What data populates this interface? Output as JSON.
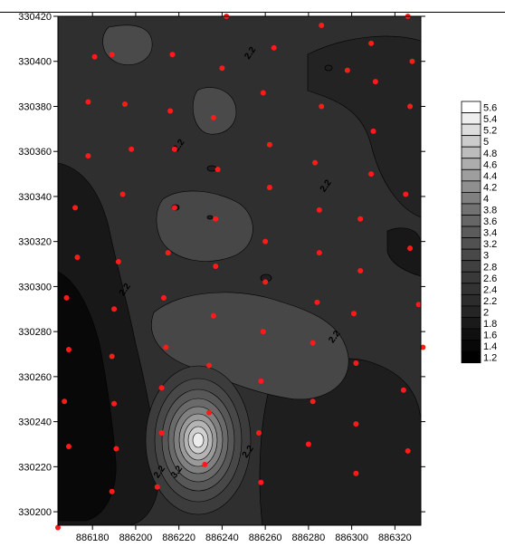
{
  "chart_data": {
    "type": "contour",
    "title": "",
    "xlabel": "",
    "ylabel": "",
    "xlim": [
      886164,
      886332
    ],
    "ylim": [
      330194,
      330420
    ],
    "x_ticks": [
      "886180",
      "886200",
      "886220",
      "886240",
      "886260",
      "886280",
      "886300",
      "886320"
    ],
    "x_tick_values": [
      886180,
      886200,
      886220,
      886240,
      886260,
      886280,
      886300,
      886320
    ],
    "y_ticks": [
      "330200",
      "330220",
      "330240",
      "330260",
      "330280",
      "330300",
      "330320",
      "330340",
      "330360",
      "330380",
      "330400",
      "330420"
    ],
    "y_tick_values": [
      330200,
      330220,
      330240,
      330260,
      330280,
      330300,
      330320,
      330340,
      330360,
      330380,
      330400,
      330420
    ],
    "contour_labels": [
      {
        "text": "2.2",
        "x": 886254,
        "y": 330403
      },
      {
        "text": "2.2",
        "x": 886221,
        "y": 330362
      },
      {
        "text": "2.2",
        "x": 886289,
        "y": 330344
      },
      {
        "text": "2.2",
        "x": 886196,
        "y": 330298
      },
      {
        "text": "2.2",
        "x": 886293,
        "y": 330277
      },
      {
        "text": "2.2",
        "x": 886253,
        "y": 330226
      },
      {
        "text": "2.2",
        "x": 886212,
        "y": 330217
      },
      {
        "text": "3.2",
        "x": 886220,
        "y": 330217
      }
    ],
    "colorbar": {
      "levels": [
        "5.6",
        "5.4",
        "5.2",
        "5",
        "4.8",
        "4.6",
        "4.4",
        "4.2",
        "4",
        "3.8",
        "3.6",
        "3.4",
        "3.2",
        "3",
        "2.8",
        "2.6",
        "2.4",
        "2.2",
        "2",
        "1.8",
        "1.6",
        "1.4",
        "1.2"
      ],
      "colors": [
        "#ffffff",
        "#eeeeee",
        "#dddddd",
        "#cccccc",
        "#bcbcbc",
        "#adadad",
        "#9e9e9e",
        "#8f8f8f",
        "#808080",
        "#727272",
        "#666666",
        "#5b5b5b",
        "#515151",
        "#484848",
        "#404040",
        "#393939",
        "#333333",
        "#2c2c2c",
        "#252525",
        "#1a1a1a",
        "#101010",
        "#080808",
        "#000000"
      ]
    },
    "sample_points_color": "#ff1a1a",
    "sample_points": [
      {
        "x": 886242,
        "y": 330420
      },
      {
        "x": 886286,
        "y": 330416
      },
      {
        "x": 886326,
        "y": 330420
      },
      {
        "x": 886181,
        "y": 330402
      },
      {
        "x": 886189,
        "y": 330403
      },
      {
        "x": 886217,
        "y": 330403
      },
      {
        "x": 886240,
        "y": 330397
      },
      {
        "x": 886264,
        "y": 330406
      },
      {
        "x": 886309,
        "y": 330408
      },
      {
        "x": 886328,
        "y": 330400
      },
      {
        "x": 886298,
        "y": 330396
      },
      {
        "x": 886311,
        "y": 330391
      },
      {
        "x": 886178,
        "y": 330382
      },
      {
        "x": 886195,
        "y": 330381
      },
      {
        "x": 886216,
        "y": 330378
      },
      {
        "x": 886236,
        "y": 330375
      },
      {
        "x": 886259,
        "y": 330386
      },
      {
        "x": 886286,
        "y": 330380
      },
      {
        "x": 886327,
        "y": 330380
      },
      {
        "x": 886178,
        "y": 330358
      },
      {
        "x": 886198,
        "y": 330361
      },
      {
        "x": 886218,
        "y": 330361
      },
      {
        "x": 886238,
        "y": 330352
      },
      {
        "x": 886262,
        "y": 330363
      },
      {
        "x": 886283,
        "y": 330355
      },
      {
        "x": 886310,
        "y": 330369
      },
      {
        "x": 886309,
        "y": 330350
      },
      {
        "x": 886172,
        "y": 330335
      },
      {
        "x": 886194,
        "y": 330341
      },
      {
        "x": 886218,
        "y": 330335
      },
      {
        "x": 886237,
        "y": 330330
      },
      {
        "x": 886262,
        "y": 330344
      },
      {
        "x": 886285,
        "y": 330334
      },
      {
        "x": 886325,
        "y": 330341
      },
      {
        "x": 886304,
        "y": 330330
      },
      {
        "x": 886173,
        "y": 330313
      },
      {
        "x": 886192,
        "y": 330311
      },
      {
        "x": 886215,
        "y": 330315
      },
      {
        "x": 886237,
        "y": 330309
      },
      {
        "x": 886260,
        "y": 330320
      },
      {
        "x": 886285,
        "y": 330315
      },
      {
        "x": 886327,
        "y": 330317
      },
      {
        "x": 886168,
        "y": 330295
      },
      {
        "x": 886190,
        "y": 330290
      },
      {
        "x": 886213,
        "y": 330295
      },
      {
        "x": 886236,
        "y": 330287
      },
      {
        "x": 886260,
        "y": 330302
      },
      {
        "x": 886284,
        "y": 330293
      },
      {
        "x": 886304,
        "y": 330307
      },
      {
        "x": 886301,
        "y": 330288
      },
      {
        "x": 886331,
        "y": 330292
      },
      {
        "x": 886169,
        "y": 330272
      },
      {
        "x": 886189,
        "y": 330269
      },
      {
        "x": 886214,
        "y": 330273
      },
      {
        "x": 886234,
        "y": 330265
      },
      {
        "x": 886259,
        "y": 330280
      },
      {
        "x": 886282,
        "y": 330275
      },
      {
        "x": 886302,
        "y": 330266
      },
      {
        "x": 886333,
        "y": 330273
      },
      {
        "x": 886167,
        "y": 330249
      },
      {
        "x": 886190,
        "y": 330248
      },
      {
        "x": 886212,
        "y": 330255
      },
      {
        "x": 886234,
        "y": 330244
      },
      {
        "x": 886258,
        "y": 330258
      },
      {
        "x": 886282,
        "y": 330249
      },
      {
        "x": 886324,
        "y": 330254
      },
      {
        "x": 886169,
        "y": 330229
      },
      {
        "x": 886191,
        "y": 330228
      },
      {
        "x": 886212,
        "y": 330235
      },
      {
        "x": 886232,
        "y": 330221
      },
      {
        "x": 886257,
        "y": 330235
      },
      {
        "x": 886280,
        "y": 330230
      },
      {
        "x": 886302,
        "y": 330239
      },
      {
        "x": 886326,
        "y": 330227
      },
      {
        "x": 886189,
        "y": 330209
      },
      {
        "x": 886210,
        "y": 330211
      },
      {
        "x": 886258,
        "y": 330213
      },
      {
        "x": 886302,
        "y": 330217
      },
      {
        "x": 886164,
        "y": 330193
      }
    ]
  }
}
